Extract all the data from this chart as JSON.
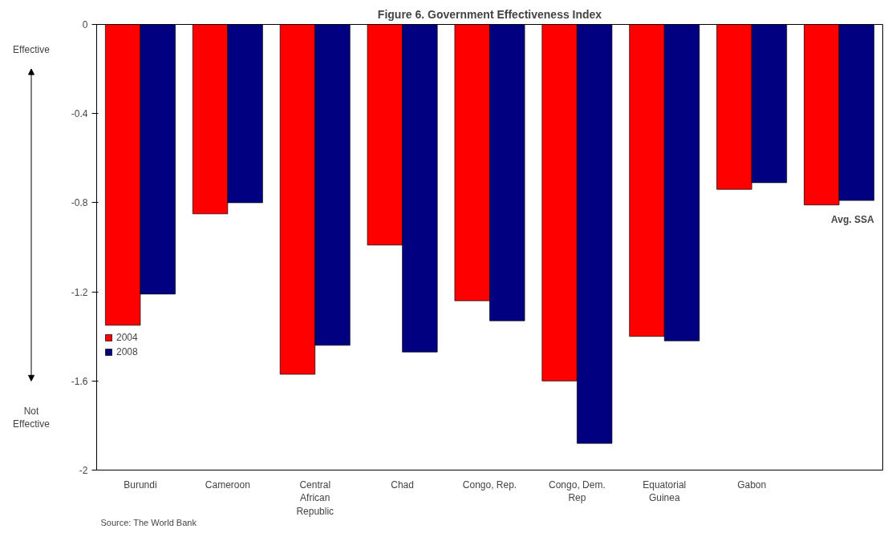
{
  "chart_data": {
    "type": "bar",
    "title": "Figure 6. Government Effectiveness Index",
    "categories": [
      "Burundi",
      "Cameroon",
      "Central African Republic",
      "Chad",
      "Congo, Rep.",
      "Congo, Dem. Rep",
      "Equatorial Guinea",
      "Gabon",
      null
    ],
    "series": [
      {
        "name": "2004",
        "color": "#ff0000",
        "values": [
          -1.35,
          -0.85,
          -1.57,
          -0.99,
          -1.24,
          -1.6,
          -1.4,
          -0.74,
          -0.81
        ]
      },
      {
        "name": "2008",
        "color": "#000080",
        "values": [
          -1.21,
          -0.8,
          -1.44,
          -1.47,
          -1.33,
          -1.88,
          -1.42,
          -0.71,
          -0.79
        ]
      }
    ],
    "ylim": [
      -2,
      0
    ],
    "yticks": [
      -2,
      -1.6,
      -1.2,
      -0.8,
      -0.4,
      0
    ],
    "grid": false,
    "legend": "left",
    "annotations": [
      "Effective",
      "Not Effective",
      "Avg. SSA",
      "Source: The World Bank"
    ]
  }
}
